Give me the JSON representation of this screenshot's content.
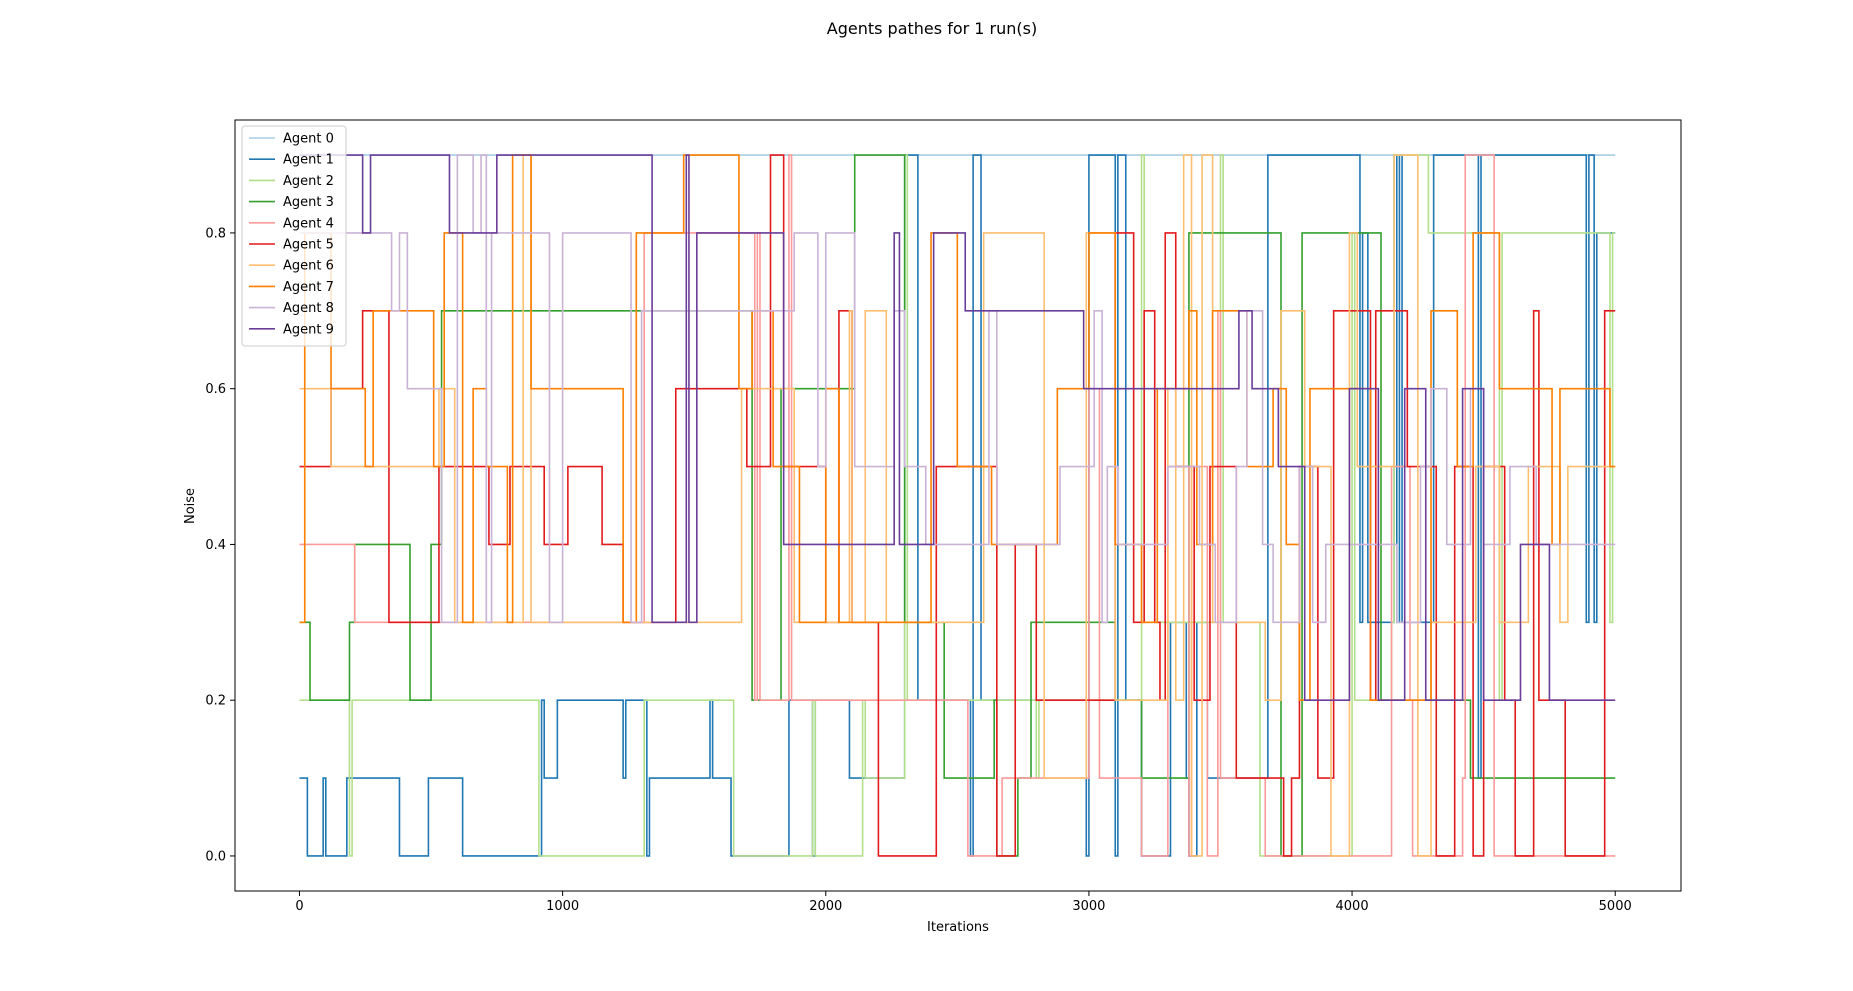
{
  "chart_data": {
    "type": "line",
    "step": "post",
    "title": "Agents pathes for 1 run(s)",
    "xlabel": "Iterations",
    "ylabel": "Noise",
    "xlim": [
      -245,
      5250
    ],
    "ylim": [
      -0.045,
      0.945
    ],
    "xticks": [
      0,
      1000,
      2000,
      3000,
      4000,
      5000
    ],
    "yticks": [
      0.0,
      0.2,
      0.4,
      0.6,
      0.8
    ],
    "xtick_labels": [
      "0",
      "1000",
      "2000",
      "3000",
      "4000",
      "5000"
    ],
    "ytick_labels": [
      "0.0",
      "0.2",
      "0.4",
      "0.6",
      "0.8"
    ],
    "grid": false,
    "legend_position": "top-left",
    "series": [
      {
        "name": "Agent 0",
        "color": "#a6cee3",
        "x": [
          0,
          5000
        ],
        "y": [
          0.9,
          0.9
        ]
      },
      {
        "name": "Agent 1",
        "color": "#1f78b4",
        "x": [
          0,
          30,
          90,
          100,
          180,
          190,
          380,
          390,
          490,
          500,
          620,
          630,
          920,
          930,
          980,
          990,
          1230,
          1240,
          1310,
          1320,
          1330,
          1340,
          1560,
          1570,
          1640,
          1650,
          1860,
          1870,
          1950,
          1960,
          2090,
          2100,
          2300,
          2310,
          2350,
          2360,
          2550,
          2560,
          2590,
          2600,
          2990,
          3000,
          3100,
          3110,
          3140,
          3150,
          3200,
          3210,
          3310,
          3320,
          3370,
          3380,
          3400,
          3410,
          3450,
          3460,
          3680,
          3690,
          4030,
          4040,
          4060,
          4070,
          4160,
          4170,
          4180,
          4190,
          4310,
          4320,
          4480,
          4490,
          4890,
          4900,
          4920,
          4930,
          5000
        ],
        "y": [
          0.1,
          0.0,
          0.1,
          0.0,
          0.1,
          0.1,
          0.0,
          0.0,
          0.1,
          0.1,
          0.0,
          0.0,
          0.2,
          0.1,
          0.2,
          0.2,
          0.1,
          0.2,
          0.2,
          0.0,
          0.1,
          0.1,
          0.2,
          0.1,
          0.0,
          0.0,
          0.2,
          0.2,
          0.0,
          0.2,
          0.1,
          0.1,
          0.9,
          0.9,
          0.2,
          0.2,
          0.0,
          0.9,
          0.2,
          0.2,
          0.0,
          0.9,
          0.0,
          0.9,
          0.2,
          0.2,
          0.0,
          0.0,
          0.3,
          0.3,
          0.1,
          0.0,
          0.0,
          0.3,
          0.1,
          0.1,
          0.9,
          0.9,
          0.3,
          0.8,
          0.3,
          0.3,
          0.9,
          0.3,
          0.9,
          0.3,
          0.9,
          0.9,
          0.1,
          0.9,
          0.3,
          0.9,
          0.3,
          0.8,
          0.8
        ]
      },
      {
        "name": "Agent 2",
        "color": "#b2df8a",
        "x": [
          0,
          190,
          200,
          900,
          910,
          1300,
          1310,
          1640,
          1650,
          1950,
          1960,
          2140,
          2150,
          2300,
          2310,
          2800,
          2810,
          3200,
          3210,
          3500,
          3510,
          3650,
          3660,
          4000,
          4010,
          4150,
          4160,
          4290,
          4300,
          4560,
          4570,
          4980,
          4990,
          5000
        ],
        "y": [
          0.2,
          0.0,
          0.2,
          0.2,
          0.0,
          0.0,
          0.2,
          0.2,
          0.0,
          0.2,
          0.0,
          0.2,
          0.1,
          0.9,
          0.2,
          0.1,
          0.2,
          0.9,
          0.3,
          0.9,
          0.3,
          0.0,
          0.0,
          0.8,
          0.2,
          0.3,
          0.9,
          0.8,
          0.8,
          0.2,
          0.8,
          0.3,
          0.8,
          0.8
        ]
      },
      {
        "name": "Agent 3",
        "color": "#33a02c",
        "x": [
          0,
          40,
          190,
          210,
          420,
          500,
          540,
          1710,
          1720,
          1820,
          1830,
          2090,
          2110,
          2300,
          2450,
          2460,
          2640,
          2650,
          2720,
          2730,
          2770,
          2780,
          3000,
          3100,
          3190,
          3200,
          3370,
          3380,
          3720,
          3730,
          3800,
          3810,
          4100,
          4110,
          4440,
          4450,
          4710,
          4720,
          5000
        ],
        "y": [
          0.3,
          0.2,
          0.3,
          0.4,
          0.2,
          0.4,
          0.7,
          0.7,
          0.2,
          0.2,
          0.6,
          0.6,
          0.9,
          0.3,
          0.1,
          0.1,
          0.2,
          0.0,
          0.0,
          0.1,
          0.1,
          0.3,
          0.3,
          0.2,
          0.2,
          0.1,
          0.1,
          0.8,
          0.8,
          0.0,
          0.0,
          0.8,
          0.8,
          0.2,
          0.2,
          0.1,
          0.1,
          0.1,
          0.1
        ]
      },
      {
        "name": "Agent 4",
        "color": "#fb9a99",
        "x": [
          0,
          210,
          220,
          680,
          690,
          1300,
          1310,
          1700,
          1730,
          1740,
          1750,
          1860,
          1870,
          2500,
          2540,
          2550,
          2660,
          2670,
          3000,
          3030,
          3040,
          3190,
          3200,
          3300,
          3310,
          3380,
          3390,
          3440,
          3450,
          3490,
          3500,
          3660,
          3670,
          4140,
          4150,
          4220,
          4230,
          4420,
          4430,
          4540,
          4550,
          5000
        ],
        "y": [
          0.4,
          0.3,
          0.3,
          0.3,
          0.3,
          0.3,
          0.8,
          0.8,
          0.2,
          0.8,
          0.2,
          0.9,
          0.2,
          0.2,
          0.0,
          0.0,
          0.0,
          0.1,
          0.6,
          0.6,
          0.1,
          0.1,
          0.0,
          0.5,
          0.5,
          0.0,
          0.5,
          0.5,
          0.0,
          0.7,
          0.1,
          0.1,
          0.0,
          0.0,
          0.5,
          0.2,
          0.0,
          0.1,
          0.9,
          0.0,
          0.0,
          0.0
        ]
      },
      {
        "name": "Agent 5",
        "color": "#e31a1c",
        "x": [
          0,
          120,
          240,
          340,
          530,
          720,
          800,
          930,
          1020,
          1150,
          1230,
          1430,
          1700,
          1790,
          1840,
          2000,
          2050,
          2100,
          2200,
          2420,
          2470,
          2650,
          2720,
          2800,
          2850,
          3100,
          3170,
          3210,
          3250,
          3270,
          3290,
          3330,
          3400,
          3460,
          3560,
          3700,
          3740,
          3770,
          3800,
          3870,
          3930,
          4070,
          4090,
          4110,
          4210,
          4220,
          4320,
          4390,
          4460,
          4500,
          4580,
          4620,
          4690,
          4710,
          4810,
          4820,
          4960,
          5000
        ],
        "y": [
          0.5,
          0.6,
          0.7,
          0.3,
          0.5,
          0.4,
          0.5,
          0.4,
          0.5,
          0.4,
          0.3,
          0.6,
          0.5,
          0.9,
          0.5,
          0.3,
          0.7,
          0.3,
          0.0,
          0.5,
          0.5,
          0.0,
          0.4,
          0.2,
          0.2,
          0.8,
          0.3,
          0.7,
          0.3,
          0.2,
          0.8,
          0.5,
          0.2,
          0.5,
          0.1,
          0.1,
          0.0,
          0.1,
          0.5,
          0.1,
          0.7,
          0.2,
          0.7,
          0.7,
          0.5,
          0.5,
          0.0,
          0.5,
          0.0,
          0.5,
          0.2,
          0.0,
          0.7,
          0.2,
          0.0,
          0.0,
          0.7,
          0.7
        ]
      },
      {
        "name": "Agent 6",
        "color": "#fdbf6f",
        "x": [
          0,
          120,
          220,
          530,
          590,
          650,
          850,
          880,
          1000,
          1230,
          1250,
          1680,
          1880,
          1920,
          2090,
          2100,
          2150,
          2190,
          2230,
          2260,
          2600,
          2770,
          2830,
          2990,
          3100,
          3170,
          3300,
          3330,
          3360,
          3390,
          3430,
          3470,
          3530,
          3670,
          3730,
          3820,
          3890,
          3920,
          3990,
          4020,
          4130,
          4160,
          4250,
          4300,
          4470,
          4560,
          4600,
          4670,
          4790,
          4820,
          4940,
          5000
        ],
        "y": [
          0.6,
          0.5,
          0.5,
          0.6,
          0.3,
          0.3,
          0.9,
          0.3,
          0.3,
          0.3,
          0.3,
          0.6,
          0.3,
          0.3,
          0.7,
          0.3,
          0.7,
          0.7,
          0.3,
          0.3,
          0.8,
          0.8,
          0.1,
          0.8,
          0.2,
          0.2,
          0.6,
          0.2,
          0.9,
          0.0,
          0.9,
          0.3,
          0.3,
          0.2,
          0.7,
          0.5,
          0.5,
          0.0,
          0.8,
          0.5,
          0.5,
          0.9,
          0.0,
          0.3,
          0.5,
          0.3,
          0.3,
          0.5,
          0.3,
          0.5,
          0.5,
          0.5
        ]
      },
      {
        "name": "Agent 7",
        "color": "#ff7f00",
        "x": [
          0,
          20,
          120,
          250,
          280,
          510,
          550,
          620,
          660,
          710,
          790,
          810,
          880,
          1230,
          1280,
          1460,
          1670,
          1720,
          1800,
          1850,
          1900,
          2000,
          2050,
          2310,
          2400,
          2500,
          2560,
          2630,
          2880,
          3000,
          3100,
          3200,
          3260,
          3300,
          3380,
          3410,
          3470,
          3600,
          3700,
          3750,
          3800,
          3840,
          4000,
          4070,
          4300,
          4400,
          4440,
          4460,
          4560,
          4760,
          4790,
          4980,
          5000
        ],
        "y": [
          0.3,
          0.8,
          0.6,
          0.5,
          0.7,
          0.5,
          0.8,
          0.3,
          0.6,
          0.5,
          0.3,
          0.9,
          0.6,
          0.3,
          0.8,
          0.9,
          0.6,
          0.7,
          0.5,
          0.5,
          0.3,
          0.6,
          0.3,
          0.3,
          0.8,
          0.5,
          0.5,
          0.4,
          0.6,
          0.8,
          0.4,
          0.3,
          0.6,
          0.6,
          0.7,
          0.4,
          0.7,
          0.5,
          0.6,
          0.4,
          0.2,
          0.6,
          0.6,
          0.2,
          0.7,
          0.5,
          0.5,
          0.8,
          0.6,
          0.4,
          0.6,
          0.5,
          0.5
        ]
      },
      {
        "name": "Agent 8",
        "color": "#cab2d6",
        "x": [
          0,
          280,
          350,
          380,
          410,
          540,
          600,
          660,
          690,
          710,
          730,
          890,
          950,
          1000,
          1260,
          1300,
          1880,
          1970,
          2000,
          2110,
          2260,
          2300,
          2380,
          2620,
          2650,
          2890,
          3020,
          3050,
          3070,
          3110,
          3300,
          3360,
          3420,
          3480,
          3560,
          3600,
          3660,
          3700,
          3800,
          3850,
          3900,
          4000,
          4170,
          4260,
          4300,
          4360,
          4450,
          4500,
          4600,
          4700,
          4800,
          4930,
          5000
        ],
        "y": [
          0.8,
          0.8,
          0.7,
          0.8,
          0.6,
          0.3,
          0.9,
          0.8,
          0.9,
          0.3,
          0.8,
          0.8,
          0.3,
          0.8,
          0.3,
          0.7,
          0.8,
          0.5,
          0.8,
          0.5,
          0.7,
          0.5,
          0.4,
          0.7,
          0.4,
          0.5,
          0.7,
          0.3,
          0.5,
          0.4,
          0.5,
          0.5,
          0.4,
          0.3,
          0.5,
          0.7,
          0.4,
          0.3,
          0.5,
          0.3,
          0.4,
          0.4,
          0.3,
          0.5,
          0.6,
          0.4,
          0.6,
          0.4,
          0.5,
          0.4,
          0.4,
          0.4,
          0.4
        ]
      },
      {
        "name": "Agent 9",
        "color": "#6a3d9a",
        "x": [
          0,
          240,
          270,
          570,
          750,
          1340,
          1460,
          1470,
          1480,
          1510,
          1840,
          1880,
          2260,
          2280,
          2410,
          2530,
          2590,
          2980,
          3300,
          3570,
          3620,
          3680,
          3720,
          3820,
          3840,
          3990,
          4100,
          4200,
          4280,
          4420,
          4500,
          4530,
          4640,
          4680,
          4750,
          4770,
          5000
        ],
        "y": [
          0.9,
          0.8,
          0.9,
          0.8,
          0.9,
          0.3,
          0.3,
          0.9,
          0.3,
          0.8,
          0.4,
          0.4,
          0.8,
          0.4,
          0.8,
          0.7,
          0.7,
          0.6,
          0.6,
          0.7,
          0.6,
          0.6,
          0.5,
          0.2,
          0.2,
          0.6,
          0.2,
          0.6,
          0.2,
          0.6,
          0.2,
          0.2,
          0.4,
          0.4,
          0.2,
          0.2,
          0.2
        ]
      }
    ]
  }
}
